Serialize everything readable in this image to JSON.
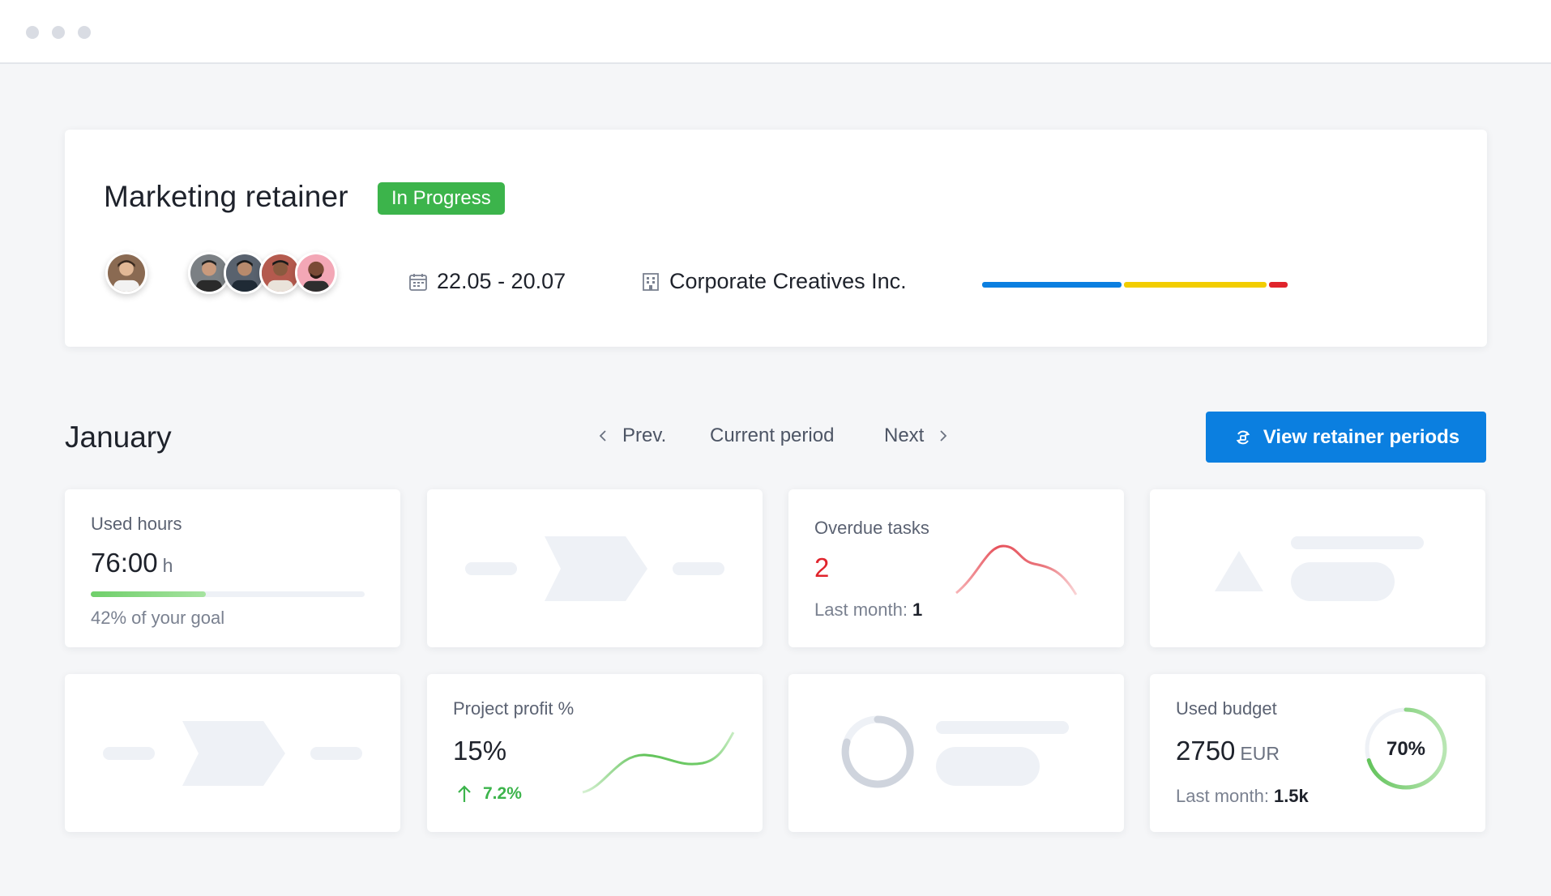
{
  "window": {
    "controls": [
      "close",
      "minimize",
      "maximize"
    ]
  },
  "project": {
    "title": "Marketing retainer",
    "status": "In Progress",
    "status_color": "#3cb44b",
    "dates": "22.05 - 20.07",
    "client": "Corporate Creatives Inc.",
    "owner_avatar": "person-avatar",
    "team_avatars": [
      "person-avatar",
      "person-avatar",
      "person-avatar",
      "person-avatar"
    ],
    "progress_segments": [
      {
        "color": "#0b7fe0",
        "share": 0.46
      },
      {
        "color": "#f2cd00",
        "share": 0.47
      },
      {
        "color": "#e0242c",
        "share": 0.06
      }
    ]
  },
  "period": {
    "month": "January",
    "prev_label": "Prev.",
    "current_label": "Current period",
    "next_label": "Next",
    "view_button_label": "View retainer periods"
  },
  "metrics": {
    "used_hours": {
      "label": "Used hours",
      "value": "76:00",
      "unit": "h",
      "progress": 0.42,
      "caption": "42% of your goal"
    },
    "overdue_tasks": {
      "label": "Overdue tasks",
      "value": "2",
      "last_month_label": "Last month:",
      "last_month_value": "1",
      "accent": "#e0242c"
    },
    "project_profit": {
      "label": "Project profit %",
      "value": "15%",
      "change": "7.2%",
      "accent": "#3cb44b"
    },
    "used_budget": {
      "label": "Used budget",
      "value": "2750",
      "unit": "EUR",
      "last_month_label": "Last month:",
      "last_month_value": "1.5k",
      "percent_label": "70%",
      "percent": 0.7
    }
  },
  "colors": {
    "primary": "#0b7fe0",
    "danger": "#e0242c",
    "success": "#3cb44b",
    "placeholder": "#eef1f6"
  }
}
